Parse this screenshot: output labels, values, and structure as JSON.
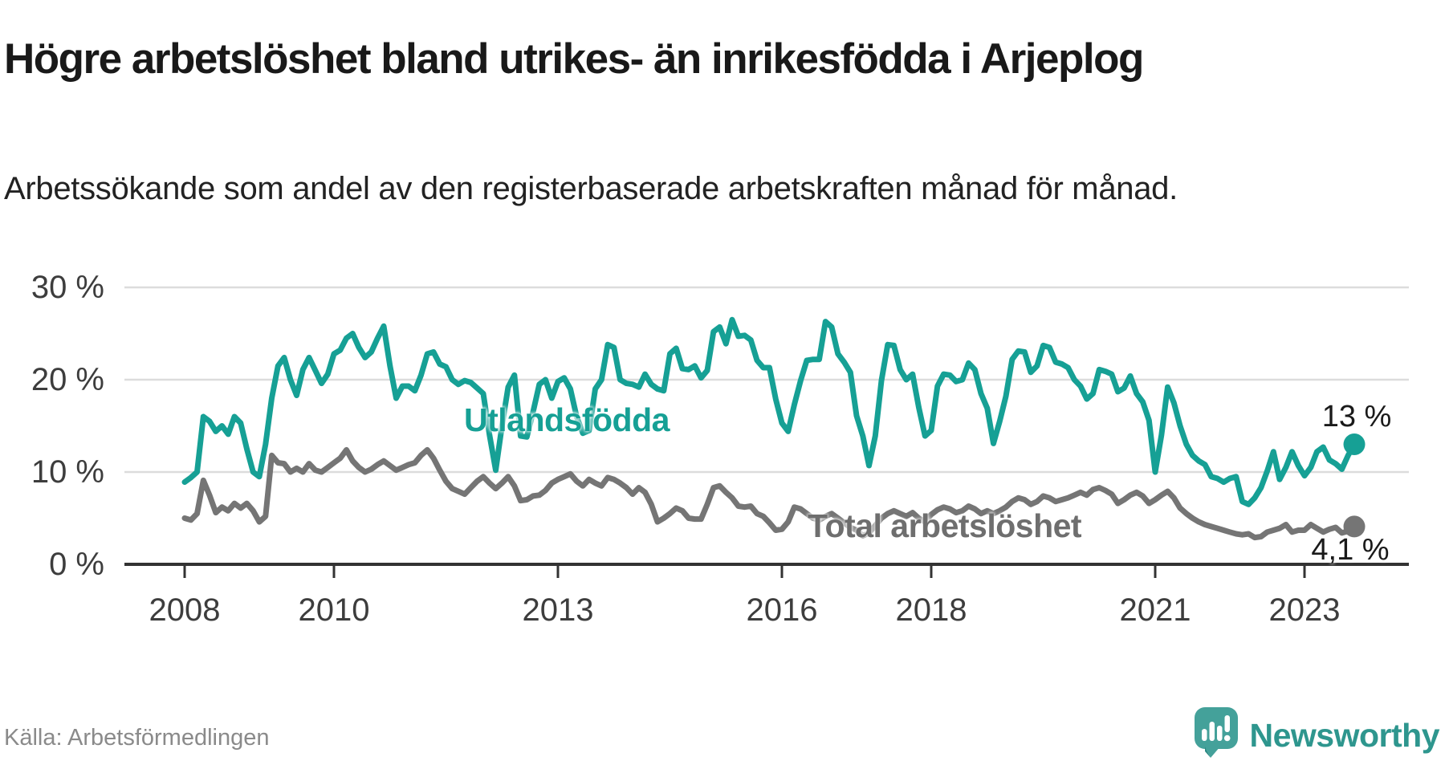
{
  "title": "Högre arbetslöshet bland utrikes- än inrikesfödda i Arjeplog",
  "subtitle": "Arbetssökande som andel av den registerbaserade arbetskraften månad för månad.",
  "source": "Källa: Arbetsförmedlingen",
  "brand": {
    "name": "Newsworthy",
    "icon": "newsworthy-speech-bubble-chart-icon"
  },
  "colors": {
    "accent_teal": "#16A095",
    "line_gray": "#757575",
    "grid": "#DCDCDC",
    "axis": "#333333",
    "text_dark": "#1A1A1A",
    "text_gray": "#8A8A8A",
    "brand_teal": "#2E968E"
  },
  "chart_data": {
    "type": "line",
    "title": "Högre arbetslöshet bland utrikes- än inrikesfödda i Arjeplog",
    "xlabel": "",
    "ylabel": "",
    "x_unit": "month",
    "x_start": "2008-01",
    "x_end": "2023-09",
    "ylim": [
      0,
      30
    ],
    "grid": "horizontal",
    "legend_position": "inline-labels",
    "y_tick_values": [
      30,
      20,
      10,
      0
    ],
    "y_tick_labels": [
      "30 %",
      "20 %",
      "10 %",
      "0 %"
    ],
    "x_tick_years": [
      2008,
      2010,
      2013,
      2016,
      2018,
      2021,
      2023
    ],
    "x_tick_labels": [
      "2008",
      "2010",
      "2013",
      "2016",
      "2018",
      "2021",
      "2023"
    ],
    "series": [
      {
        "name": "Utlandsfödda",
        "color": "#16A095",
        "end_label": "13 %",
        "end_value": 13.0,
        "values": [
          8.9,
          9.4,
          10.0,
          16.0,
          15.5,
          14.4,
          15.0,
          14.1,
          16.0,
          15.3,
          12.5,
          10.0,
          9.5,
          13.0,
          18.0,
          21.5,
          22.4,
          20.0,
          18.3,
          21.1,
          22.4,
          21.0,
          19.6,
          20.6,
          22.8,
          23.2,
          24.5,
          25.0,
          23.5,
          22.4,
          23.0,
          24.5,
          25.8,
          21.5,
          18.0,
          19.3,
          19.3,
          18.8,
          20.5,
          22.8,
          23.0,
          21.7,
          21.4,
          20.0,
          19.5,
          19.9,
          19.7,
          19.1,
          18.5,
          14.0,
          10.2,
          15.0,
          19.2,
          20.5,
          13.9,
          13.8,
          16.5,
          19.5,
          20.0,
          18.0,
          19.8,
          20.2,
          19.0,
          16.0,
          14.2,
          14.5,
          19.0,
          20.0,
          23.8,
          23.5,
          20.0,
          19.6,
          19.5,
          19.2,
          20.6,
          19.5,
          19.0,
          18.8,
          22.8,
          23.4,
          21.2,
          21.1,
          21.5,
          20.2,
          21.0,
          25.2,
          25.7,
          23.9,
          26.5,
          24.7,
          24.8,
          24.3,
          22.1,
          21.3,
          21.3,
          17.9,
          15.3,
          14.4,
          17.3,
          19.9,
          22.1,
          22.2,
          22.2,
          26.3,
          25.7,
          22.8,
          21.9,
          20.8,
          16.1,
          13.9,
          10.7,
          13.9,
          19.9,
          23.8,
          23.7,
          21.1,
          20.0,
          20.6,
          17.0,
          13.9,
          14.5,
          19.3,
          20.6,
          20.5,
          19.8,
          20.0,
          21.8,
          21.1,
          18.5,
          16.9,
          13.1,
          15.5,
          18.2,
          22.2,
          23.1,
          23.0,
          20.8,
          21.5,
          23.7,
          23.5,
          21.9,
          21.7,
          21.3,
          20.0,
          19.3,
          17.9,
          18.5,
          21.1,
          20.9,
          20.6,
          18.7,
          19.1,
          20.4,
          18.5,
          17.6,
          15.6,
          10.0,
          14.0,
          19.2,
          17.5,
          15.0,
          13.0,
          11.8,
          11.2,
          10.8,
          9.5,
          9.3,
          8.9,
          9.3,
          9.5,
          6.8,
          6.5,
          7.2,
          8.3,
          10.1,
          12.2,
          9.2,
          10.5,
          12.2,
          10.7,
          9.6,
          10.5,
          12.2,
          12.7,
          11.3,
          10.9,
          10.3,
          11.8,
          13.0
        ]
      },
      {
        "name": "Total arbetslöshet",
        "color": "#757575",
        "end_label": "4,1 %",
        "end_value": 4.1,
        "values": [
          5.0,
          4.8,
          5.5,
          9.1,
          7.5,
          5.6,
          6.2,
          5.8,
          6.6,
          6.1,
          6.6,
          5.8,
          4.6,
          5.2,
          11.8,
          11.0,
          10.9,
          10.0,
          10.4,
          10.0,
          10.9,
          10.2,
          10.0,
          10.5,
          11.0,
          11.5,
          12.4,
          11.2,
          10.5,
          10.0,
          10.3,
          10.8,
          11.2,
          10.7,
          10.2,
          10.5,
          10.8,
          11.0,
          11.8,
          12.4,
          11.5,
          10.2,
          9.0,
          8.2,
          7.9,
          7.6,
          8.3,
          9.0,
          9.5,
          8.8,
          8.2,
          8.8,
          9.5,
          8.5,
          6.9,
          7.0,
          7.4,
          7.5,
          8.0,
          8.8,
          9.2,
          9.5,
          9.8,
          9.0,
          8.5,
          9.2,
          8.8,
          8.5,
          9.4,
          9.2,
          8.8,
          8.3,
          7.6,
          8.3,
          7.8,
          6.5,
          4.6,
          5.0,
          5.5,
          6.1,
          5.8,
          5.0,
          4.9,
          4.9,
          6.5,
          8.3,
          8.5,
          7.8,
          7.2,
          6.3,
          6.2,
          6.3,
          5.5,
          5.2,
          4.5,
          3.7,
          3.8,
          4.6,
          6.2,
          6.0,
          5.5,
          5.0,
          4.8,
          5.2,
          5.5,
          5.0,
          4.5,
          4.0,
          3.7,
          3.1,
          3.4,
          4.2,
          5.0,
          5.5,
          5.8,
          5.5,
          5.2,
          5.6,
          5.0,
          4.6,
          5.4,
          5.9,
          6.2,
          6.0,
          5.6,
          5.8,
          6.3,
          6.0,
          5.5,
          5.8,
          5.5,
          5.8,
          6.2,
          6.8,
          7.2,
          7.0,
          6.5,
          6.8,
          7.4,
          7.2,
          6.8,
          7.0,
          7.2,
          7.5,
          7.8,
          7.5,
          8.1,
          8.3,
          8.0,
          7.6,
          6.6,
          7.0,
          7.5,
          7.8,
          7.4,
          6.6,
          7.0,
          7.5,
          7.9,
          7.2,
          6.1,
          5.5,
          5.0,
          4.6,
          4.3,
          4.1,
          3.9,
          3.7,
          3.5,
          3.3,
          3.2,
          3.3,
          2.9,
          3.0,
          3.5,
          3.7,
          3.9,
          4.3,
          3.5,
          3.7,
          3.7,
          4.3,
          3.9,
          3.5,
          3.8,
          4.0,
          3.4,
          3.6,
          4.1
        ]
      }
    ]
  }
}
